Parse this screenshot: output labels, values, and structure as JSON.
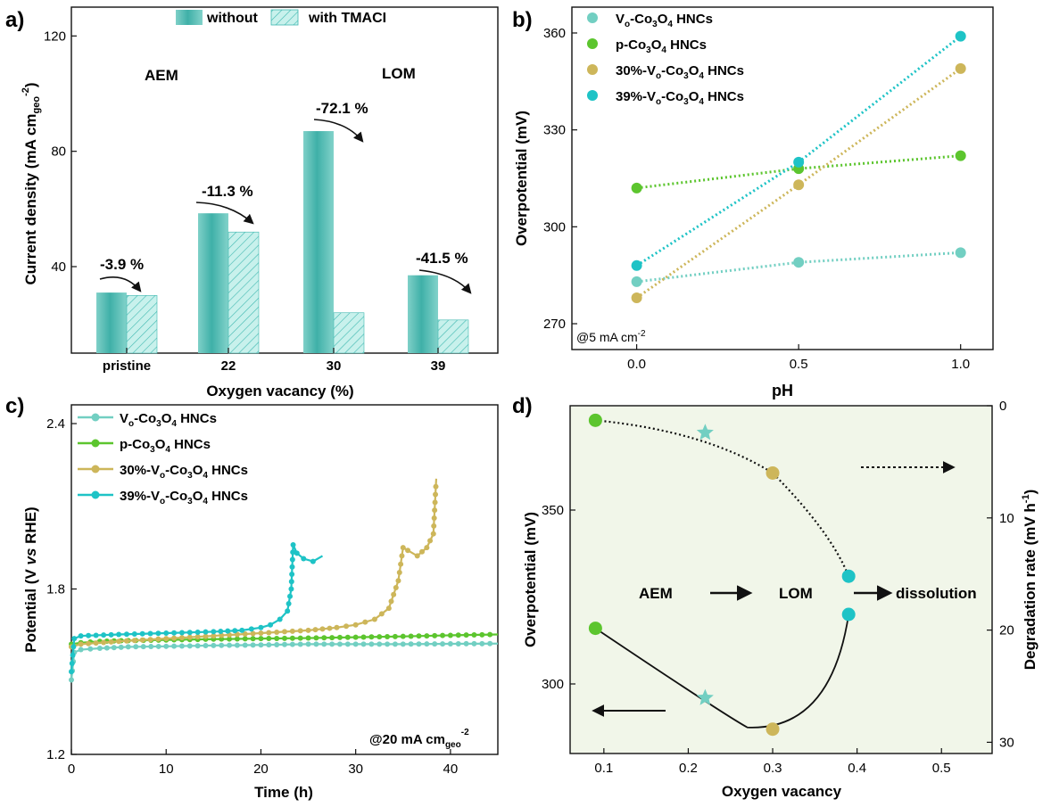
{
  "colors": {
    "teal_dark": "#3fb8b0",
    "teal_light": "#b9ece6",
    "vo": "#72cfc2",
    "p": "#5cc52e",
    "v30": "#cdb65a",
    "v39": "#1ec3c6",
    "bg_d": "#f1f6e9"
  },
  "chart_data": [
    {
      "panel": "a)",
      "type": "bar",
      "xlabel": "Oxygen vacancy (%)",
      "ylabel": "Current density (mA cm",
      "ylabel_sub": "geo",
      "ylabel_sup": "-2",
      "ylabel_close": ")",
      "ylim": [
        10,
        130
      ],
      "yticks": [
        "40",
        "80",
        "120"
      ],
      "categories": [
        "pristine",
        "22",
        "30",
        "39"
      ],
      "series": [
        {
          "name": "without",
          "values": [
            31,
            58.5,
            87,
            37
          ]
        },
        {
          "name": "with TMACI",
          "values": [
            30,
            52,
            24,
            21.5
          ]
        }
      ],
      "annotations": [
        "-3.9 %",
        "-11.3 %",
        "-72.1 %",
        "-41.5 %"
      ],
      "region_labels": [
        "AEM",
        "LOM"
      ]
    },
    {
      "panel": "b)",
      "type": "scatter",
      "xlabel": "pH",
      "ylabel": "Overpotential (mV)",
      "xlim": [
        -0.2,
        1.1
      ],
      "ylim": [
        262,
        368
      ],
      "xticks": [
        "0.0",
        "0.5",
        "1.0"
      ],
      "yticks": [
        "270",
        "300",
        "330",
        "360"
      ],
      "note": "@5 mA cm",
      "note_sup": "-2",
      "x": [
        0.0,
        0.5,
        1.0
      ],
      "series": [
        {
          "name": "Vo-Co3O4 HNCs",
          "values": [
            283,
            289,
            292
          ]
        },
        {
          "name": "p-Co3O4 HNCs",
          "values": [
            312,
            318,
            322
          ]
        },
        {
          "name": "30%-Vo-Co3O4 HNCs",
          "values": [
            278,
            313,
            349
          ]
        },
        {
          "name": "39%-Vo-Co3O4 HNCs",
          "values": [
            288,
            320,
            359
          ]
        }
      ]
    },
    {
      "panel": "c)",
      "type": "line",
      "xlabel": "Time (h)",
      "ylabel_pre": "Potential (V ",
      "ylabel_italic": "vs",
      "ylabel_post": " RHE)",
      "xlim": [
        0,
        45
      ],
      "ylim": [
        1.2,
        2.4
      ],
      "xticks": [
        "0",
        "10",
        "20",
        "30",
        "40"
      ],
      "yticks": [
        "1.2",
        "1.8",
        "2.4"
      ],
      "note": "@20 mA cm",
      "note_sub": "geo",
      "note_sup": "-2",
      "series": [
        {
          "name": "Vo-Co3O4 HNCs",
          "t": [
            0,
            0.3,
            1,
            3,
            6,
            10,
            15,
            20,
            25,
            30,
            35,
            40,
            45
          ],
          "v": [
            1.47,
            1.57,
            1.58,
            1.585,
            1.59,
            1.592,
            1.595,
            1.597,
            1.6,
            1.6,
            1.6,
            1.601,
            1.602
          ]
        },
        {
          "name": "p-Co3O4 HNCs",
          "t": [
            0,
            1,
            3,
            6,
            10,
            15,
            20,
            25,
            30,
            35,
            40,
            45
          ],
          "v": [
            1.6,
            1.605,
            1.61,
            1.613,
            1.615,
            1.618,
            1.62,
            1.622,
            1.625,
            1.628,
            1.632,
            1.635
          ]
        },
        {
          "name": "30%-Vo-Co3O4 HNCs",
          "t": [
            0,
            1,
            5,
            10,
            15,
            20,
            25,
            28,
            30,
            32,
            33.5,
            34.5,
            35,
            35.5,
            36.5,
            37.5,
            38.2,
            38.5
          ],
          "v": [
            1.59,
            1.6,
            1.61,
            1.62,
            1.63,
            1.64,
            1.65,
            1.66,
            1.67,
            1.69,
            1.73,
            1.83,
            1.95,
            1.94,
            1.92,
            1.95,
            2.0,
            2.2
          ]
        },
        {
          "name": "39%-Vo-Co3O4 HNCs",
          "t": [
            0,
            0.3,
            1,
            5,
            10,
            15,
            18,
            20,
            21,
            22,
            22.8,
            23.2,
            23.4,
            23.8,
            24.5,
            25.5,
            26.5
          ],
          "v": [
            1.5,
            1.62,
            1.63,
            1.635,
            1.64,
            1.645,
            1.65,
            1.66,
            1.67,
            1.69,
            1.72,
            1.8,
            1.96,
            1.93,
            1.91,
            1.9,
            1.92
          ]
        }
      ]
    },
    {
      "panel": "d)",
      "type": "scatter",
      "xlabel": "Oxygen vacancy",
      "ylabel": "Overpotential (mV)",
      "ylabel_right": "Degradation rate (mV h",
      "ylabel_right_sup": "-1",
      "ylabel_right_close": ")",
      "xlim": [
        0.06,
        0.56
      ],
      "ylim": [
        280,
        380
      ],
      "ylim_right": [
        31,
        0
      ],
      "xticks": [
        "0.1",
        "0.2",
        "0.3",
        "0.4",
        "0.5"
      ],
      "yticks": [
        "300",
        "350"
      ],
      "yticks_right": [
        "0",
        "10",
        "20",
        "30"
      ],
      "overpotential_points": [
        {
          "x": 0.09,
          "y": 316,
          "name": "p-Co3O4"
        },
        {
          "x": 0.22,
          "y": 296,
          "name": "Vo-Co3O4"
        },
        {
          "x": 0.3,
          "y": 287,
          "name": "30%-Vo-Co3O4"
        },
        {
          "x": 0.39,
          "y": 320,
          "name": "39%-Vo-Co3O4"
        }
      ],
      "degradation_points": [
        {
          "x": 0.09,
          "y": 1.3
        },
        {
          "x": 0.22,
          "y": 2.4
        },
        {
          "x": 0.3,
          "y": 6.0
        },
        {
          "x": 0.39,
          "y": 15.2
        }
      ],
      "labels": [
        "AEM",
        "LOM",
        "dissolution"
      ]
    }
  ]
}
